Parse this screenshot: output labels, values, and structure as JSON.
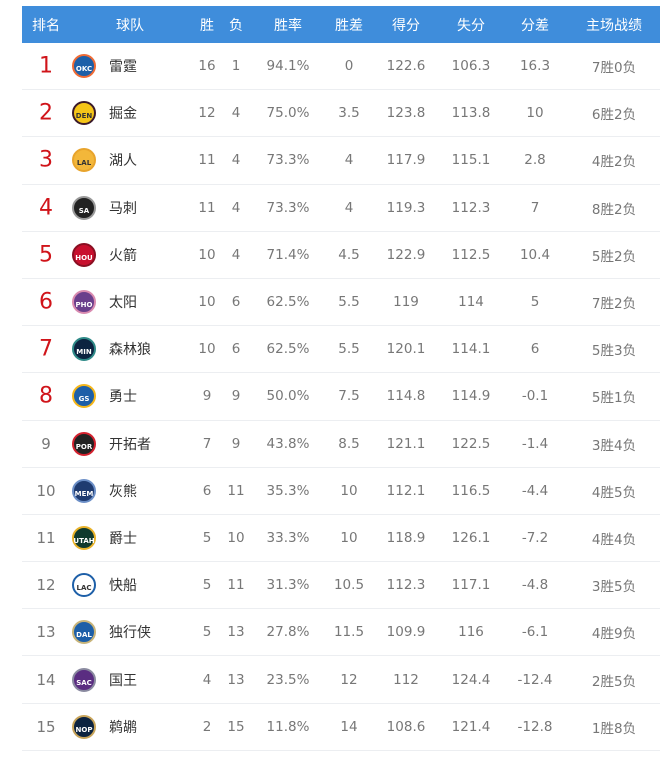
{
  "headers": {
    "rank": "排名",
    "team": "球队",
    "w": "胜",
    "l": "负",
    "pct": "胜率",
    "gb": "胜差",
    "pf": "得分",
    "pa": "失分",
    "diff": "分差",
    "home": "主场战绩"
  },
  "rows": [
    {
      "rank": "1",
      "abbr": "OKC",
      "team": "雷霆",
      "w": "16",
      "l": "1",
      "pct": "94.1%",
      "gb": "0",
      "pf": "122.6",
      "pa": "106.3",
      "diff": "16.3",
      "home": "7胜0负",
      "bg": "#1d5fa8",
      "ring": "#ef6b35"
    },
    {
      "rank": "2",
      "abbr": "DEN",
      "team": "掘金",
      "w": "12",
      "l": "4",
      "pct": "75.0%",
      "gb": "3.5",
      "pf": "123.8",
      "pa": "113.8",
      "diff": "10",
      "home": "6胜2负",
      "bg": "#f5c518",
      "ring": "#3a1a2a"
    },
    {
      "rank": "3",
      "abbr": "LAL",
      "team": "湖人",
      "w": "11",
      "l": "4",
      "pct": "73.3%",
      "gb": "4",
      "pf": "117.9",
      "pa": "115.1",
      "diff": "2.8",
      "home": "4胜2负",
      "bg": "#f3b73a",
      "ring": "#e8a42c"
    },
    {
      "rank": "4",
      "abbr": "SA",
      "team": "马刺",
      "w": "11",
      "l": "4",
      "pct": "73.3%",
      "gb": "4",
      "pf": "119.3",
      "pa": "112.3",
      "diff": "7",
      "home": "8胜2负",
      "bg": "#222",
      "ring": "#999"
    },
    {
      "rank": "5",
      "abbr": "HOU",
      "team": "火箭",
      "w": "10",
      "l": "4",
      "pct": "71.4%",
      "gb": "4.5",
      "pf": "122.9",
      "pa": "112.5",
      "diff": "10.4",
      "home": "5胜2负",
      "bg": "#c8102e",
      "ring": "#8a0f22"
    },
    {
      "rank": "6",
      "abbr": "PHO",
      "team": "太阳",
      "w": "10",
      "l": "6",
      "pct": "62.5%",
      "gb": "5.5",
      "pf": "119",
      "pa": "114",
      "diff": "5",
      "home": "7胜2负",
      "bg": "#6a3f8c",
      "ring": "#d98bb0"
    },
    {
      "rank": "7",
      "abbr": "MIN",
      "team": "森林狼",
      "w": "10",
      "l": "6",
      "pct": "62.5%",
      "gb": "5.5",
      "pf": "120.1",
      "pa": "114.1",
      "diff": "6",
      "home": "5胜3负",
      "bg": "#0c2340",
      "ring": "#2f8a88"
    },
    {
      "rank": "8",
      "abbr": "GS",
      "team": "勇士",
      "w": "9",
      "l": "9",
      "pct": "50.0%",
      "gb": "7.5",
      "pf": "114.8",
      "pa": "114.9",
      "diff": "-0.1",
      "home": "5胜1负",
      "bg": "#1d5fa8",
      "ring": "#f5b61a"
    },
    {
      "rank": "9",
      "abbr": "POR",
      "team": "开拓者",
      "w": "7",
      "l": "9",
      "pct": "43.8%",
      "gb": "8.5",
      "pf": "121.1",
      "pa": "122.5",
      "diff": "-1.4",
      "home": "3胜4负",
      "bg": "#222",
      "ring": "#d3212e"
    },
    {
      "rank": "10",
      "abbr": "MEM",
      "team": "灰熊",
      "w": "6",
      "l": "11",
      "pct": "35.3%",
      "gb": "10",
      "pf": "112.1",
      "pa": "116.5",
      "diff": "-4.4",
      "home": "4胜5负",
      "bg": "#1f3b70",
      "ring": "#6c8fc7"
    },
    {
      "rank": "11",
      "abbr": "UTAH",
      "team": "爵士",
      "w": "5",
      "l": "10",
      "pct": "33.3%",
      "gb": "10",
      "pf": "118.9",
      "pa": "126.1",
      "diff": "-7.2",
      "home": "4胜4负",
      "bg": "#0f3a2e",
      "ring": "#e8b22a"
    },
    {
      "rank": "12",
      "abbr": "LAC",
      "team": "快船",
      "w": "5",
      "l": "11",
      "pct": "31.3%",
      "gb": "10.5",
      "pf": "112.3",
      "pa": "117.1",
      "diff": "-4.8",
      "home": "3胜5负",
      "bg": "#fff",
      "ring": "#1d5fa8"
    },
    {
      "rank": "13",
      "abbr": "DAL",
      "team": "独行侠",
      "w": "5",
      "l": "13",
      "pct": "27.8%",
      "gb": "11.5",
      "pf": "109.9",
      "pa": "116",
      "diff": "-6.1",
      "home": "4胜9负",
      "bg": "#1d5fa8",
      "ring": "#c8b47a"
    },
    {
      "rank": "14",
      "abbr": "SAC",
      "team": "国王",
      "w": "4",
      "l": "13",
      "pct": "23.5%",
      "gb": "12",
      "pf": "112",
      "pa": "124.4",
      "diff": "-12.4",
      "home": "2胜5负",
      "bg": "#5a2d81",
      "ring": "#8a8aa0"
    },
    {
      "rank": "15",
      "abbr": "NOP",
      "team": "鹈鹕",
      "w": "2",
      "l": "15",
      "pct": "11.8%",
      "gb": "14",
      "pf": "108.6",
      "pa": "121.4",
      "diff": "-12.8",
      "home": "1胜8负",
      "bg": "#0c2340",
      "ring": "#c8a45a"
    }
  ]
}
